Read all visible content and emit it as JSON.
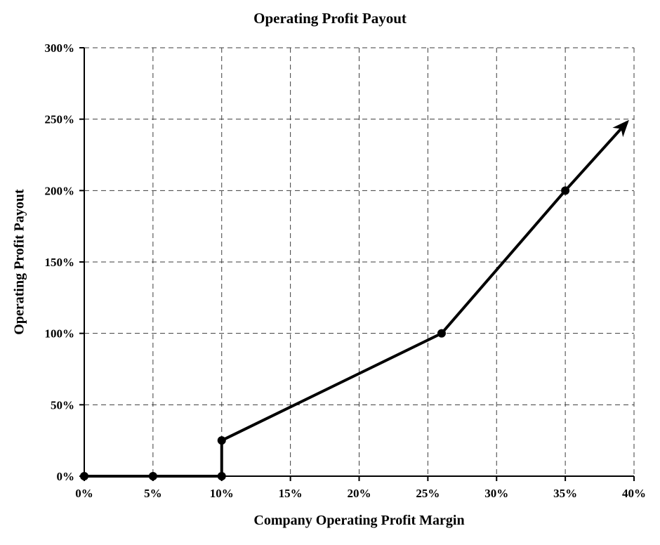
{
  "chart_data": {
    "type": "line",
    "title": "Operating Profit Payout",
    "xlabel": "Company Operating Profit Margin",
    "ylabel": "Operating Profit Payout",
    "xlim": [
      0,
      40
    ],
    "ylim": [
      0,
      300
    ],
    "x_ticks": [
      0,
      5,
      10,
      15,
      20,
      25,
      30,
      35,
      40
    ],
    "x_tick_labels": [
      "0%",
      "5%",
      "10%",
      "15%",
      "20%",
      "25%",
      "30%",
      "35%",
      "40%"
    ],
    "y_ticks": [
      0,
      50,
      100,
      150,
      200,
      250,
      300
    ],
    "y_tick_labels": [
      "0%",
      "50%",
      "100%",
      "150%",
      "200%",
      "250%",
      "300%"
    ],
    "grid": "dashed",
    "grid_color": "#3c3c3c",
    "axis_color": "#000000",
    "legend": "none",
    "series": [
      {
        "name": "Operating Profit Payout",
        "color": "#000000",
        "line_width": 4,
        "arrow_end": true,
        "points": [
          {
            "x": 0,
            "y": 0,
            "marker": true
          },
          {
            "x": 5,
            "y": 0,
            "marker": true
          },
          {
            "x": 10,
            "y": 0,
            "marker": true
          },
          {
            "x": 10,
            "y": 25,
            "marker": true
          },
          {
            "x": 26,
            "y": 100,
            "marker": true
          },
          {
            "x": 35,
            "y": 200,
            "marker": true
          },
          {
            "x": 39.5,
            "y": 248,
            "marker": false
          }
        ]
      }
    ]
  }
}
